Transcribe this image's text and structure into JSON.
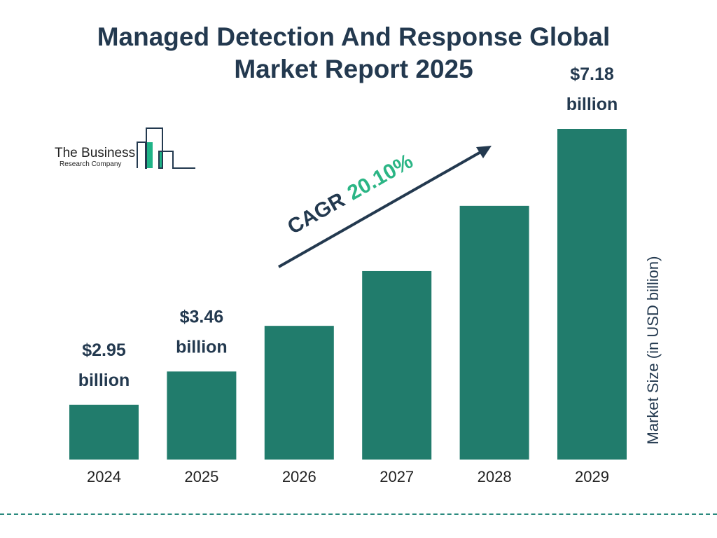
{
  "title_line1": "Managed Detection And Response Global",
  "title_line2": "Market Report 2025",
  "logo": {
    "line1": "The Business",
    "line2": "Research Company"
  },
  "colors": {
    "bar": "#217c6c",
    "text": "#23394f",
    "accent": "#2bb585",
    "logo_green": "#1fb387"
  },
  "chart_data": {
    "type": "bar",
    "title": "Managed Detection And Response Global Market Report 2025",
    "categories": [
      "2024",
      "2025",
      "2026",
      "2027",
      "2028",
      "2029"
    ],
    "values": [
      2.95,
      3.46,
      4.16,
      5.0,
      6.0,
      7.18
    ],
    "data_labels": [
      {
        "index": 0,
        "value": "$2.95",
        "unit": "billion"
      },
      {
        "index": 1,
        "value": "$3.46",
        "unit": "billion"
      },
      {
        "index": 5,
        "value": "$7.18",
        "unit": "billion"
      }
    ],
    "ylabel": "Market Size (in USD billion)",
    "xlabel": "",
    "grid": false,
    "annotation": {
      "label": "CAGR",
      "value": "20.10%"
    }
  }
}
